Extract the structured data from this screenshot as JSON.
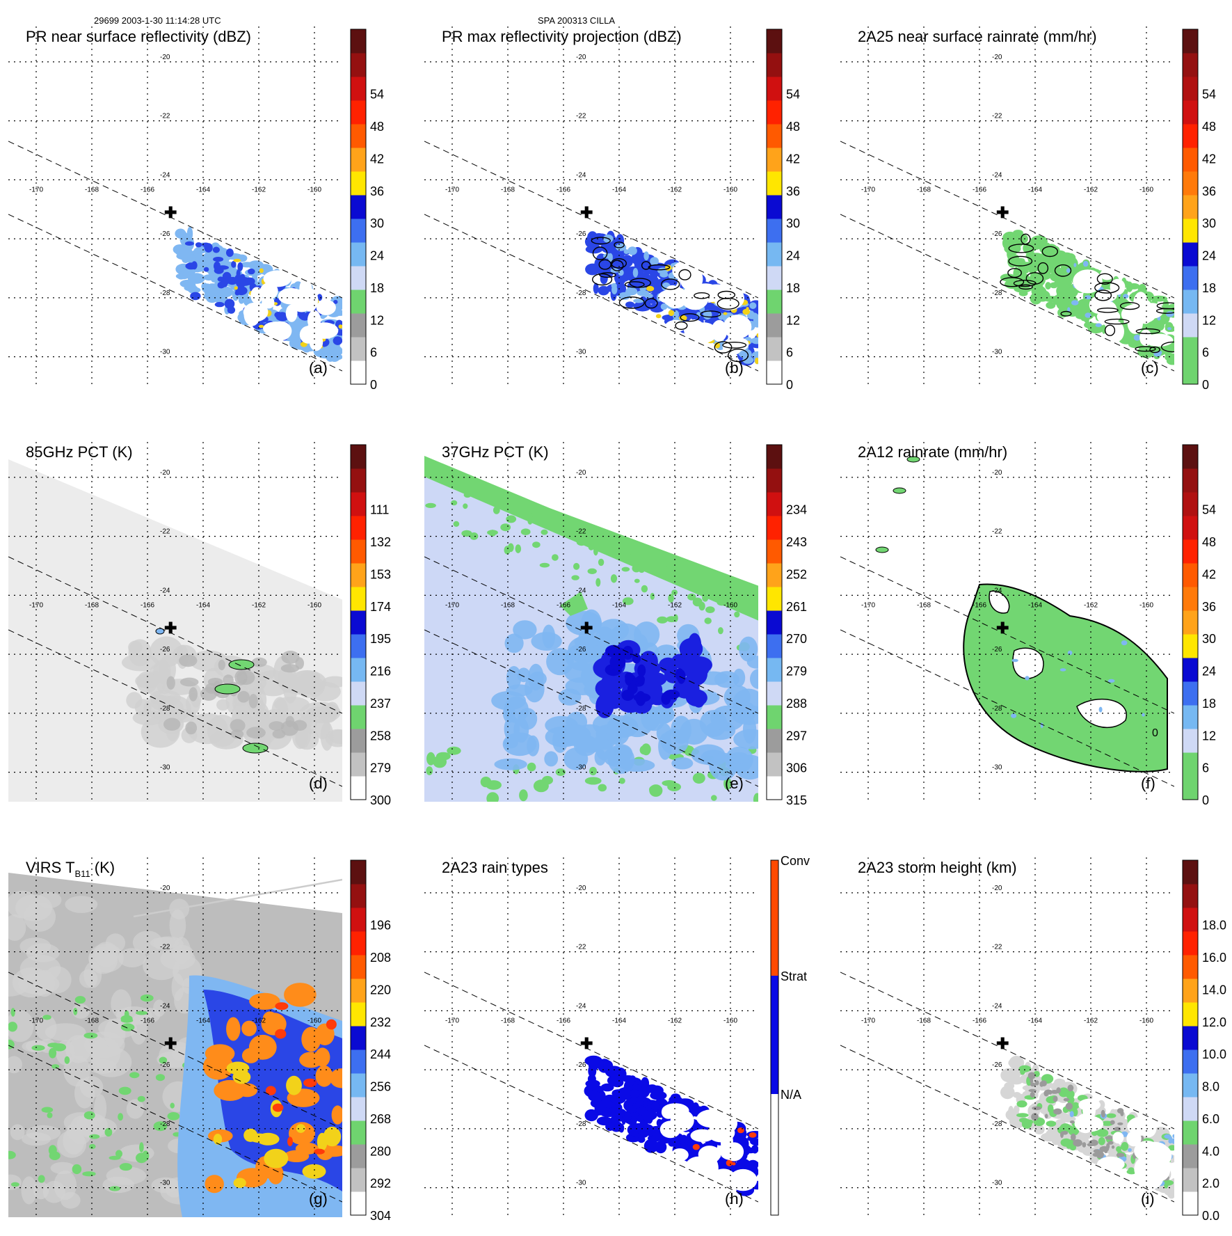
{
  "header": {
    "left": "29699 2003-1-30 11:14:28 UTC",
    "center": "SPA 200313 CILLA"
  },
  "map": {
    "lon_ticks": [
      -170,
      -168,
      -166,
      -164,
      -162,
      -160
    ],
    "lat_ticks": [
      -20,
      -22,
      -24,
      -26,
      -28,
      -30
    ],
    "lon_range": [
      -171,
      -159
    ],
    "lat_range": [
      -18.8,
      -31
    ],
    "storm_center": {
      "lon": -165.2,
      "lat": -25.1,
      "symbol": "✚"
    }
  },
  "colors": {
    "scale12": [
      "#ffffff",
      "#c0c0c0",
      "#9a9a9a",
      "#6fd46f",
      "#cfd9f5",
      "#72b4f2",
      "#3a6ef0",
      "#0a0ad2",
      "#ffe600",
      "#ffa31a",
      "#ff5a00",
      "#ff2200",
      "#d01010",
      "#941010",
      "#5c1010"
    ],
    "green": "#72d672",
    "lightblue": "#cdd8f6",
    "midblue": "#7fb7f2",
    "blue": "#2a46e6",
    "darkblue": "#0a0ad2",
    "yellow": "#f2d21a",
    "orange": "#ff8c1a",
    "red": "#ff3b0a",
    "gray": "#9a9a9a",
    "lightgray": "#d6d6d6",
    "black": "#000000"
  },
  "panels": [
    {
      "id": "a",
      "title": "PR near surface reflectivity (dBZ)",
      "label": "(a)",
      "colorbar": {
        "labels": [
          "0",
          "6",
          "12",
          "18",
          "24",
          "30",
          "36",
          "42",
          "48",
          "54"
        ],
        "colors": [
          "#ffffff",
          "#c2c2c2",
          "#9c9c9c",
          "#6fd46f",
          "#cfd9f5",
          "#76b8f2",
          "#3d6ff0",
          "#0a0ad2",
          "#ffe600",
          "#ffa31a",
          "#ff5a00",
          "#ff2200",
          "#d01010",
          "#941010",
          "#5c1010"
        ]
      }
    },
    {
      "id": "b",
      "title": "PR max reflectivity projection (dBZ)",
      "label": "(b)",
      "colorbar": {
        "labels": [
          "0",
          "6",
          "12",
          "18",
          "24",
          "30",
          "36",
          "42",
          "48",
          "54"
        ],
        "colors": [
          "#ffffff",
          "#c2c2c2",
          "#9c9c9c",
          "#6fd46f",
          "#cfd9f5",
          "#76b8f2",
          "#3d6ff0",
          "#0a0ad2",
          "#ffe600",
          "#ffa31a",
          "#ff5a00",
          "#ff2200",
          "#d01010",
          "#941010",
          "#5c1010"
        ]
      }
    },
    {
      "id": "c",
      "title": "2A25 near surface rainrate (mm/hr)",
      "label": "(c)",
      "colorbar": {
        "labels": [
          "0",
          "6",
          "12",
          "18",
          "24",
          "30",
          "36",
          "42",
          "48",
          "54"
        ],
        "colors": [
          "#6fd46f",
          "#6fd46f",
          "#cfd9f5",
          "#76b8f2",
          "#3d6ff0",
          "#0a0ad2",
          "#ffe600",
          "#ffa31a",
          "#ff7a0a",
          "#ff5a00",
          "#ff2200",
          "#d01010",
          "#b01010",
          "#941010",
          "#5c1010"
        ]
      }
    },
    {
      "id": "d",
      "title": "85GHz PCT (K)",
      "label": "(d)",
      "colorbar": {
        "labels": [
          "300",
          "279",
          "258",
          "237",
          "216",
          "195",
          "174",
          "153",
          "132",
          "111"
        ],
        "colors": [
          "#ffffff",
          "#c2c2c2",
          "#9c9c9c",
          "#6fd46f",
          "#cfd9f5",
          "#76b8f2",
          "#3d6ff0",
          "#0a0ad2",
          "#ffe600",
          "#ffa31a",
          "#ff5a00",
          "#ff2200",
          "#d01010",
          "#941010",
          "#5c1010"
        ]
      }
    },
    {
      "id": "e",
      "title": "37GHz PCT (K)",
      "label": "(e)",
      "colorbar": {
        "labels": [
          "315",
          "306",
          "297",
          "288",
          "279",
          "270",
          "261",
          "252",
          "243",
          "234"
        ],
        "colors": [
          "#ffffff",
          "#c2c2c2",
          "#9c9c9c",
          "#6fd46f",
          "#cfd9f5",
          "#76b8f2",
          "#3d6ff0",
          "#0a0ad2",
          "#ffe600",
          "#ffa31a",
          "#ff5a00",
          "#ff2200",
          "#d01010",
          "#941010",
          "#5c1010"
        ]
      }
    },
    {
      "id": "f",
      "title": "2A12 rainrate (mm/hr)",
      "label": "(f)",
      "extra_label": "0",
      "colorbar": {
        "labels": [
          "0",
          "6",
          "12",
          "18",
          "24",
          "30",
          "36",
          "42",
          "48",
          "54"
        ],
        "colors": [
          "#6fd46f",
          "#6fd46f",
          "#cfd9f5",
          "#76b8f2",
          "#3d6ff0",
          "#0a0ad2",
          "#ffe600",
          "#ffa31a",
          "#ff7a0a",
          "#ff5a00",
          "#ff2200",
          "#d01010",
          "#b01010",
          "#941010",
          "#5c1010"
        ]
      }
    },
    {
      "id": "g",
      "title_main": "VIRS T",
      "title_sub": "B11",
      "title_tail": " (K)",
      "label": "(g)",
      "colorbar": {
        "labels": [
          "304",
          "292",
          "280",
          "268",
          "256",
          "244",
          "232",
          "220",
          "208",
          "196"
        ],
        "colors": [
          "#ffffff",
          "#c2c2c2",
          "#9c9c9c",
          "#6fd46f",
          "#cfd9f5",
          "#76b8f2",
          "#3d6ff0",
          "#0a0ad2",
          "#ffe600",
          "#ffa31a",
          "#ff5a00",
          "#ff2200",
          "#d01010",
          "#941010",
          "#5c1010"
        ]
      }
    },
    {
      "id": "h",
      "title": "2A23 rain types",
      "label": "(h)",
      "categorical": {
        "labels": [
          "N/A",
          "Strat",
          "Conv"
        ],
        "colors": [
          "#ffffff",
          "#0a0ae6",
          "#ff4a00"
        ]
      }
    },
    {
      "id": "i",
      "title": "2A23 storm height (km)",
      "label": "(i)",
      "colorbar": {
        "labels": [
          "0.0",
          "2.0",
          "4.0",
          "6.0",
          "8.0",
          "10.0",
          "12.0",
          "14.0",
          "16.0",
          "18.0"
        ],
        "colors": [
          "#ffffff",
          "#c2c2c2",
          "#9c9c9c",
          "#6fd46f",
          "#cfd9f5",
          "#76b8f2",
          "#3d6ff0",
          "#0a0ad2",
          "#ffe600",
          "#ffa31a",
          "#ff5a00",
          "#ff2200",
          "#d01010",
          "#941010",
          "#5c1010"
        ]
      }
    }
  ]
}
